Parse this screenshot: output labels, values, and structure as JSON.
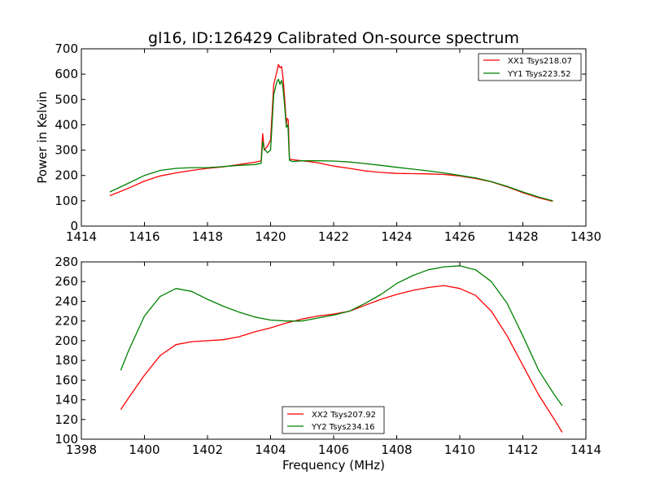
{
  "chart_data": [
    {
      "type": "line",
      "title": "gl16, ID:126429 Calibrated On-source spectrum",
      "xlabel": "",
      "ylabel": "Power in Kelvin",
      "xlim": [
        1414,
        1430
      ],
      "ylim": [
        0,
        700
      ],
      "xticks": [
        1414,
        1416,
        1418,
        1420,
        1422,
        1424,
        1426,
        1428,
        1430
      ],
      "yticks": [
        0,
        100,
        200,
        300,
        400,
        500,
        600,
        700
      ],
      "legend_position": "top-right",
      "grid": false,
      "series": [
        {
          "name": "XX1 Tsys218.07",
          "color": "#ff0000",
          "x": [
            1414.9,
            1415.5,
            1416,
            1416.5,
            1417,
            1417.5,
            1418,
            1418.5,
            1419,
            1419.5,
            1419.7,
            1419.75,
            1419.8,
            1419.9,
            1420.0,
            1420.1,
            1420.2,
            1420.25,
            1420.3,
            1420.35,
            1420.4,
            1420.45,
            1420.5,
            1420.52,
            1420.56,
            1420.6,
            1420.7,
            1421,
            1421.5,
            1422,
            1422.5,
            1423,
            1423.5,
            1424,
            1424.5,
            1425,
            1425.5,
            1426,
            1426.5,
            1427,
            1427.5,
            1428,
            1428.5,
            1428.95
          ],
          "y": [
            120,
            150,
            178,
            198,
            210,
            220,
            228,
            234,
            243,
            252,
            258,
            365,
            300,
            315,
            340,
            560,
            610,
            638,
            625,
            630,
            580,
            500,
            400,
            425,
            420,
            265,
            262,
            258,
            250,
            237,
            228,
            218,
            212,
            208,
            207,
            206,
            204,
            198,
            188,
            175,
            155,
            132,
            112,
            98
          ]
        },
        {
          "name": "YY1 Tsys223.52",
          "color": "#008000",
          "x": [
            1414.9,
            1415.5,
            1416,
            1416.5,
            1417,
            1417.5,
            1418,
            1418.5,
            1419,
            1419.5,
            1419.7,
            1419.75,
            1419.8,
            1419.9,
            1420.0,
            1420.1,
            1420.2,
            1420.25,
            1420.3,
            1420.35,
            1420.4,
            1420.45,
            1420.5,
            1420.55,
            1420.6,
            1420.7,
            1421,
            1421.5,
            1422,
            1422.5,
            1423,
            1423.5,
            1424,
            1424.5,
            1425,
            1425.5,
            1426,
            1426.5,
            1427,
            1427.5,
            1428,
            1428.5,
            1428.95
          ],
          "y": [
            135,
            170,
            200,
            220,
            228,
            231,
            231,
            235,
            240,
            243,
            248,
            335,
            305,
            290,
            300,
            520,
            570,
            580,
            560,
            575,
            540,
            470,
            390,
            400,
            260,
            255,
            258,
            258,
            257,
            253,
            247,
            240,
            232,
            225,
            218,
            210,
            200,
            190,
            176,
            157,
            135,
            115,
            100
          ]
        }
      ]
    },
    {
      "type": "line",
      "title": "",
      "xlabel": "Frequency (MHz)",
      "ylabel": "",
      "xlim": [
        1398,
        1414
      ],
      "ylim": [
        100,
        280
      ],
      "xticks": [
        1398,
        1400,
        1402,
        1404,
        1406,
        1408,
        1410,
        1412,
        1414
      ],
      "yticks": [
        100,
        120,
        140,
        160,
        180,
        200,
        220,
        240,
        260,
        280
      ],
      "legend_position": "lower-center",
      "grid": false,
      "series": [
        {
          "name": "XX2 Tsys207.92",
          "color": "#ff0000",
          "x": [
            1399.25,
            1399.5,
            1400,
            1400.5,
            1401,
            1401.5,
            1402,
            1402.5,
            1403,
            1403.5,
            1404,
            1404.5,
            1405,
            1405.5,
            1406,
            1406.5,
            1407,
            1407.5,
            1408,
            1408.5,
            1409,
            1409.5,
            1410,
            1410.5,
            1411,
            1411.5,
            1412,
            1412.5,
            1413,
            1413.25
          ],
          "y": [
            130,
            142,
            165,
            185,
            196,
            199,
            200,
            201,
            204,
            209,
            213,
            218,
            222,
            225,
            227,
            230,
            236,
            242,
            247,
            251,
            254,
            256,
            253,
            246,
            230,
            205,
            175,
            145,
            120,
            107
          ]
        },
        {
          "name": "YY2 Tsys234.16",
          "color": "#008000",
          "x": [
            1399.25,
            1399.5,
            1400,
            1400.5,
            1401,
            1401.5,
            1402,
            1402.5,
            1403,
            1403.5,
            1404,
            1404.5,
            1405,
            1405.5,
            1406,
            1406.5,
            1407,
            1407.5,
            1408,
            1408.5,
            1409,
            1409.5,
            1410,
            1410.5,
            1411,
            1411.5,
            1412,
            1412.5,
            1413,
            1413.25
          ],
          "y": [
            170,
            190,
            225,
            245,
            253,
            250,
            242,
            235,
            229,
            224,
            221,
            220,
            220,
            223,
            226,
            230,
            238,
            247,
            258,
            266,
            272,
            275,
            276,
            272,
            260,
            238,
            205,
            170,
            145,
            134
          ]
        }
      ]
    }
  ]
}
